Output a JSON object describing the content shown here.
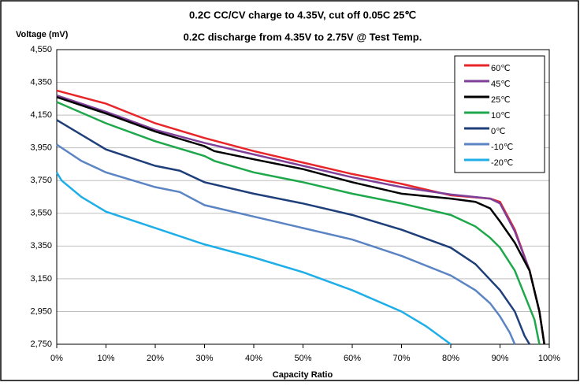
{
  "chart_data": {
    "type": "line",
    "title": "0.2C CC/CV charge to 4.35V, cut off 0.05C 25℃",
    "subtitle": "0.2C discharge from 4.35V to 2.75V @ Test Temp.",
    "y_label": "Voltage (mV)",
    "x_label": "Capacity Ratio",
    "xlim": [
      0,
      100
    ],
    "ylim": [
      2750,
      4550
    ],
    "xticks": [
      {
        "value": 0,
        "label": "0%"
      },
      {
        "value": 10,
        "label": "10%"
      },
      {
        "value": 20,
        "label": "20%"
      },
      {
        "value": 30,
        "label": "30%"
      },
      {
        "value": 40,
        "label": "40%"
      },
      {
        "value": 50,
        "label": "50%"
      },
      {
        "value": 60,
        "label": "60%"
      },
      {
        "value": 70,
        "label": "70%"
      },
      {
        "value": 80,
        "label": "80%"
      },
      {
        "value": 90,
        "label": "90%"
      },
      {
        "value": 100,
        "label": "100%"
      }
    ],
    "yticks": [
      {
        "value": 2750,
        "label": "2,750"
      },
      {
        "value": 2950,
        "label": "2,950"
      },
      {
        "value": 3150,
        "label": "3,150"
      },
      {
        "value": 3350,
        "label": "3,350"
      },
      {
        "value": 3550,
        "label": "3,550"
      },
      {
        "value": 3750,
        "label": "3,750"
      },
      {
        "value": 3950,
        "label": "3,950"
      },
      {
        "value": 4150,
        "label": "4,150"
      },
      {
        "value": 4350,
        "label": "4,350"
      },
      {
        "value": 4550,
        "label": "4,550"
      }
    ],
    "grid": true,
    "legend": "top-right",
    "series": [
      {
        "name": "60℃",
        "color": "#e8262a",
        "x": [
          0,
          10,
          20,
          30,
          40,
          50,
          60,
          70,
          80,
          88,
          90,
          93,
          96,
          98,
          99
        ],
        "values": [
          4300,
          4220,
          4100,
          4010,
          3930,
          3860,
          3790,
          3730,
          3660,
          3640,
          3620,
          3450,
          3200,
          2950,
          2750
        ]
      },
      {
        "name": "45℃",
        "color": "#7f3f98",
        "x": [
          0,
          10,
          20,
          30,
          40,
          50,
          60,
          70,
          80,
          88,
          90,
          93,
          96,
          98,
          99
        ],
        "values": [
          4270,
          4170,
          4060,
          3980,
          3910,
          3840,
          3770,
          3710,
          3665,
          3640,
          3610,
          3440,
          3200,
          2950,
          2750
        ]
      },
      {
        "name": "25℃",
        "color": "#000000",
        "x": [
          0,
          10,
          20,
          30,
          32,
          40,
          50,
          60,
          70,
          80,
          85,
          88,
          90,
          93,
          96,
          98,
          99
        ],
        "values": [
          4260,
          4160,
          4050,
          3960,
          3930,
          3880,
          3820,
          3740,
          3670,
          3640,
          3620,
          3580,
          3500,
          3370,
          3200,
          2950,
          2750
        ]
      },
      {
        "name": "10℃",
        "color": "#1ea84b",
        "x": [
          0,
          10,
          20,
          30,
          32,
          40,
          50,
          60,
          70,
          80,
          85,
          88,
          90,
          93,
          95,
          97,
          98
        ],
        "values": [
          4230,
          4100,
          3990,
          3900,
          3870,
          3800,
          3740,
          3670,
          3610,
          3540,
          3470,
          3400,
          3340,
          3200,
          3050,
          2900,
          2750
        ]
      },
      {
        "name": "0℃",
        "color": "#1f3f7a",
        "x": [
          0,
          10,
          20,
          25,
          30,
          40,
          50,
          60,
          70,
          80,
          85,
          90,
          93,
          95,
          96
        ],
        "values": [
          4120,
          3940,
          3840,
          3810,
          3740,
          3670,
          3610,
          3540,
          3450,
          3340,
          3240,
          3080,
          2950,
          2800,
          2750
        ]
      },
      {
        "name": "-10℃",
        "color": "#5b84c4",
        "x": [
          0,
          5,
          10,
          20,
          25,
          30,
          40,
          50,
          60,
          70,
          80,
          85,
          88,
          90,
          92,
          93
        ],
        "values": [
          3970,
          3870,
          3800,
          3710,
          3680,
          3600,
          3530,
          3460,
          3390,
          3290,
          3170,
          3080,
          3000,
          2920,
          2820,
          2750
        ]
      },
      {
        "name": "-20℃",
        "color": "#1eaee8",
        "x": [
          0,
          1,
          5,
          10,
          20,
          30,
          40,
          50,
          60,
          70,
          75,
          80
        ],
        "values": [
          3800,
          3750,
          3650,
          3560,
          3460,
          3360,
          3280,
          3190,
          3080,
          2950,
          2860,
          2750
        ]
      }
    ]
  }
}
